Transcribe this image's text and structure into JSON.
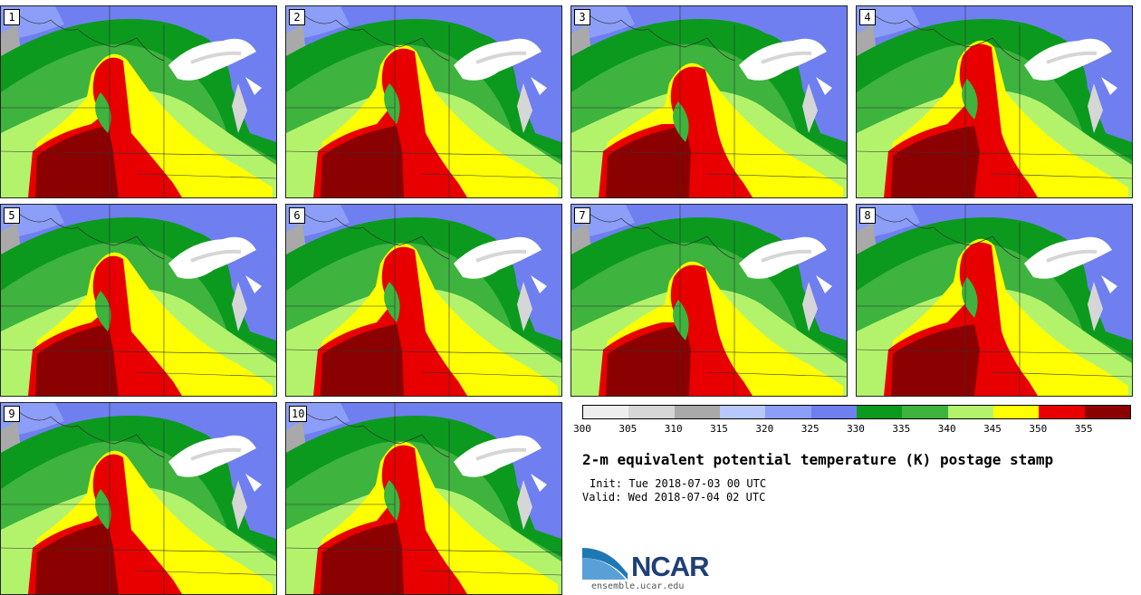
{
  "panels": [
    {
      "label": "1",
      "variant": 0
    },
    {
      "label": "2",
      "variant": 1
    },
    {
      "label": "3",
      "variant": 2
    },
    {
      "label": "4",
      "variant": 3
    },
    {
      "label": "5",
      "variant": 0
    },
    {
      "label": "6",
      "variant": 1
    },
    {
      "label": "7",
      "variant": 2
    },
    {
      "label": "8",
      "variant": 3
    },
    {
      "label": "9",
      "variant": 0
    },
    {
      "label": "10",
      "variant": 1
    }
  ],
  "colorbar": {
    "colors": [
      "#eeeeee",
      "#d6d6d6",
      "#a9a9a9",
      "#b8c8ff",
      "#8c9ef8",
      "#6f7ff0",
      "#0b9a1e",
      "#3eb33e",
      "#b3f36c",
      "#ffff00",
      "#e80000",
      "#8b0000"
    ],
    "ticks": [
      "300",
      "305",
      "310",
      "315",
      "320",
      "325",
      "330",
      "335",
      "340",
      "345",
      "350",
      "355"
    ]
  },
  "title": "2-m equivalent potential temperature (K) postage stamp",
  "init": "Init: Tue 2018-07-03 00 UTC",
  "valid": "Valid: Wed 2018-07-04 02 UTC",
  "logo": {
    "text": "NCAR",
    "url": "ensemble.ucar.edu"
  }
}
